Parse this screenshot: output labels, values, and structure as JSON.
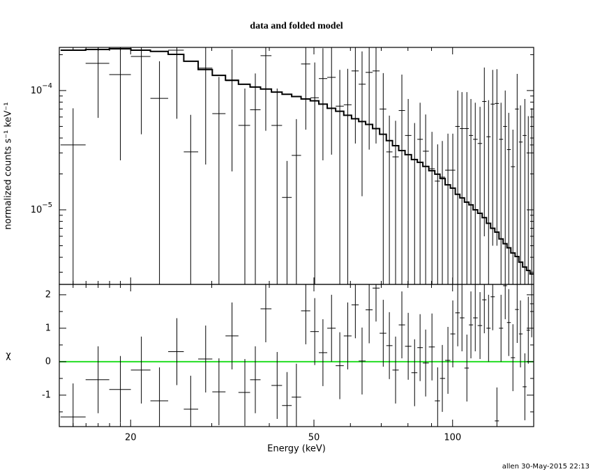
{
  "chart_data": [
    {
      "type": "errorbar",
      "title": "data and folded model",
      "ylabel": "normalized counts s⁻¹ keV⁻¹",
      "log_x": true,
      "log_y": true,
      "xlim": [
        14,
        150
      ],
      "ylim": [
        2.37e-06,
        0.00023
      ],
      "yticks": [
        {
          "value": 0.0001,
          "label": "10",
          "exponent": "−4"
        },
        {
          "value": 1e-05,
          "label": "10",
          "exponent": "−5"
        }
      ],
      "y_minor_ticks": [
        3e-06,
        4e-06,
        5e-06,
        6e-06,
        7e-06,
        8e-06,
        9e-06,
        2e-05,
        3e-05,
        4e-05,
        5e-05,
        6e-05,
        7e-05,
        8e-05,
        9e-05,
        0.0002
      ],
      "color": "#000000",
      "x": [
        15.0,
        17.0,
        19.0,
        21.1,
        23.1,
        25.2,
        27.0,
        29.1,
        31.1,
        33.2,
        35.4,
        37.3,
        39.3,
        41.6,
        43.7,
        45.8,
        48.0,
        50.2,
        52.3,
        54.6,
        56.9,
        59.2,
        61.5,
        63.6,
        65.9,
        68.2,
        70.7,
        72.9,
        75.2,
        77.6,
        80.1,
        82.7,
        85.0,
        87.4,
        90.2,
        92.8,
        95.0,
        97.7,
        100.1,
        102.6,
        104.8,
        107.4,
        109.6,
        112.0,
        114.7,
        117.2,
        119.7,
        122.2,
        124.8,
        127.4,
        130.1,
        132.4,
        135.2,
        138.1,
        140.4,
        143.5,
        146.0,
        148.5
      ],
      "values": [
        3.5e-05,
        0.000169,
        0.000136,
        0.000193,
        8.6e-05,
        0.000218,
        3.06e-05,
        0.000154,
        6.4e-05,
        0.000121,
        5.1e-05,
        6.9e-05,
        0.000196,
        5.1e-05,
        1.27e-05,
        2.86e-05,
        0.000167,
        8.7e-05,
        0.000126,
        0.000129,
        7.4e-05,
        7.6e-05,
        0.000146,
        0.000113,
        0.000142,
        0.000146,
        7e-05,
        3.06e-05,
        2.78e-05,
        6.8e-05,
        4.2e-05,
        2.64e-05,
        3.9e-05,
        3.1e-05,
        2.21e-05,
        1.74e-05,
        1.88e-05,
        2.15e-05,
        2.15e-05,
        5e-05,
        4.8e-05,
        4.8e-05,
        4.2e-05,
        3.9e-05,
        3.6e-05,
        8.1e-05,
        4.1e-05,
        7.7e-05,
        7.8e-05,
        3.9e-05,
        5e-05,
        3.2e-05,
        2.3e-05,
        7e-05,
        3.7e-05,
        4.2e-05,
        3e-05,
        3.5e-05
      ],
      "yerr": [
        3.6e-05,
        0.00011,
        0.00011,
        0.00015,
        9e-05,
        0.00016,
        3.2e-05,
        0.00013,
        6.6e-05,
        0.0001,
        5.3e-05,
        7e-05,
        0.00015,
        5.3e-05,
        1.3e-05,
        2.9e-05,
        0.00012,
        8.5e-05,
        0.0001,
        0.0001,
        7.5e-05,
        7.6e-05,
        0.00011,
        0.0001,
        0.00011,
        0.00011,
        7e-05,
        3.1e-05,
        2.8e-05,
        6.8e-05,
        4.3e-05,
        2.7e-05,
        4e-05,
        3.2e-05,
        2.3e-05,
        1.8e-05,
        1.9e-05,
        2.2e-05,
        2.2e-05,
        5e-05,
        4.9e-05,
        4.9e-05,
        4.3e-05,
        4e-05,
        3.7e-05,
        7.5e-05,
        4.2e-05,
        7.2e-05,
        7.3e-05,
        4e-05,
        5e-05,
        3.3e-05,
        2.4e-05,
        6.8e-05,
        3.8e-05,
        4.3e-05,
        3.1e-05,
        3.6e-05
      ],
      "model_values": [
        0.000218,
        0.000221,
        0.000224,
        0.000218,
        0.000213,
        0.000201,
        0.000176,
        0.00015,
        0.000134,
        0.000122,
        0.000113,
        0.000107,
        0.000103,
        9.7e-05,
        9.3e-05,
        8.9e-05,
        8.5e-05,
        8.2e-05,
        7.7e-05,
        7.1e-05,
        6.7e-05,
        6.2e-05,
        5.8e-05,
        5.5e-05,
        5.2e-05,
        4.8e-05,
        4.3e-05,
        3.8e-05,
        3.45e-05,
        3.14e-05,
        2.9e-05,
        2.64e-05,
        2.5e-05,
        2.31e-05,
        2.13e-05,
        1.99e-05,
        1.83e-05,
        1.62e-05,
        1.52e-05,
        1.35e-05,
        1.26e-05,
        1.16e-05,
        1.1e-05,
        1e-05,
        9.35e-06,
        8.6e-06,
        7.7e-06,
        7e-06,
        6.5e-06,
        5.7e-06,
        5.2e-06,
        4.8e-06,
        4.35e-06,
        4.06e-06,
        3.64e-06,
        3.31e-06,
        3.1e-06,
        2.9e-06
      ],
      "model_color": "#000000"
    },
    {
      "type": "residuals",
      "ylabel": "χ",
      "xlabel": "Energy (keV)",
      "xticks": [
        20,
        50,
        100
      ],
      "x_minor_ticks": [
        15,
        16,
        17,
        18,
        19,
        30,
        40,
        60,
        70,
        80,
        90
      ],
      "ylim": [
        -1.94,
        2.31
      ],
      "yticks": [
        -1,
        0,
        1,
        2
      ],
      "y_minor_ticks": [
        -1.5,
        -0.5,
        0.5,
        1.5
      ],
      "color": "#000000",
      "values": [
        -1.65,
        -0.54,
        -0.83,
        -0.25,
        -1.17,
        0.3,
        -1.42,
        0.08,
        -0.9,
        0.77,
        -0.92,
        -0.54,
        1.58,
        -0.71,
        -1.31,
        -1.06,
        1.52,
        0.9,
        0.27,
        1.0,
        -0.12,
        0.77,
        1.7,
        0.02,
        1.55,
        2.2,
        0.85,
        0.48,
        -0.25,
        1.1,
        0.46,
        -0.33,
        0.42,
        -0.04,
        0.44,
        -1.17,
        -0.5,
        0.04,
        0.83,
        1.46,
        1.31,
        -0.19,
        1.1,
        1.31,
        1.08,
        1.85,
        1.0,
        1.94,
        -1.77,
        1.0,
        2.27,
        1.17,
        0.12,
        1.56,
        0.83,
        -0.75,
        0.94,
        1.73
      ],
      "yerr": 1,
      "reference_line": {
        "value": 0,
        "color": "#22dd22"
      }
    }
  ],
  "footer": "allen 30-May-2015 22:13"
}
